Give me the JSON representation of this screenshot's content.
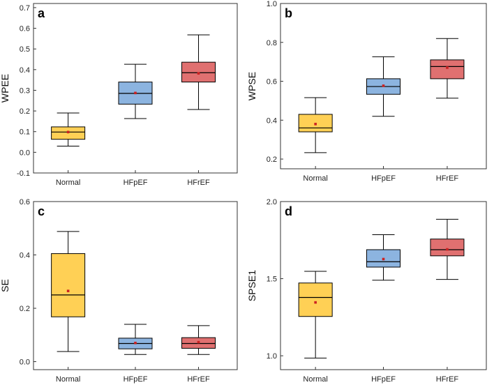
{
  "chart_data": [
    {
      "type": "box",
      "panel_label": "a",
      "ylabel": "WPEE",
      "xlabel": "",
      "ylim": [
        -0.1,
        0.72
      ],
      "yticks": [
        -0.1,
        0.0,
        0.1,
        0.2,
        0.3,
        0.4,
        0.5,
        0.6,
        0.7
      ],
      "ytick_labels": [
        "-0.1",
        "0.0",
        "0.1",
        "0.2",
        "0.3",
        "0.4",
        "0.5",
        "0.6",
        "0.7"
      ],
      "categories": [
        "Normal",
        "HFpEF",
        "HFrEF"
      ],
      "boxes": [
        {
          "name": "Normal",
          "whisker_low": 0.03,
          "q1": 0.063,
          "median": 0.098,
          "q3": 0.123,
          "whisker_high": 0.19,
          "mean": 0.098,
          "color": "#FFD055"
        },
        {
          "name": "HFpEF",
          "whisker_low": 0.163,
          "q1": 0.233,
          "median": 0.285,
          "q3": 0.34,
          "whisker_high": 0.426,
          "mean": 0.287,
          "color": "#8CB4E0"
        },
        {
          "name": "HFrEF",
          "whisker_low": 0.207,
          "q1": 0.34,
          "median": 0.385,
          "q3": 0.436,
          "whisker_high": 0.568,
          "mean": 0.382,
          "color": "#E07070"
        }
      ]
    },
    {
      "type": "box",
      "panel_label": "b",
      "ylabel": "WPSE",
      "xlabel": "",
      "ylim": [
        0.15,
        1.0
      ],
      "yticks": [
        0.2,
        0.4,
        0.6,
        0.8,
        1.0
      ],
      "ytick_labels": [
        "0.2",
        "0.4",
        "0.6",
        "0.8",
        "1.0"
      ],
      "categories": [
        "Normal",
        "HFpEF",
        "HFrEF"
      ],
      "boxes": [
        {
          "name": "Normal",
          "whisker_low": 0.233,
          "q1": 0.34,
          "median": 0.36,
          "q3": 0.43,
          "whisker_high": 0.516,
          "mean": 0.38,
          "color": "#FFD055"
        },
        {
          "name": "HFpEF",
          "whisker_low": 0.42,
          "q1": 0.533,
          "median": 0.573,
          "q3": 0.613,
          "whisker_high": 0.726,
          "mean": 0.577,
          "color": "#8CB4E0"
        },
        {
          "name": "HFrEF",
          "whisker_low": 0.513,
          "q1": 0.613,
          "median": 0.676,
          "q3": 0.71,
          "whisker_high": 0.82,
          "mean": 0.67,
          "color": "#E07070"
        }
      ]
    },
    {
      "type": "box",
      "panel_label": "c",
      "ylabel": "SE",
      "xlabel": "",
      "ylim": [
        -0.03,
        0.6
      ],
      "yticks": [
        0.0,
        0.2,
        0.4,
        0.6
      ],
      "ytick_labels": [
        "0.0",
        "0.2",
        "0.4",
        "0.6"
      ],
      "categories": [
        "Normal",
        "HFpEF",
        "HFrEF"
      ],
      "boxes": [
        {
          "name": "Normal",
          "whisker_low": 0.038,
          "q1": 0.168,
          "median": 0.25,
          "q3": 0.405,
          "whisker_high": 0.488,
          "mean": 0.265,
          "color": "#FFD055"
        },
        {
          "name": "HFpEF",
          "whisker_low": 0.027,
          "q1": 0.048,
          "median": 0.068,
          "q3": 0.088,
          "whisker_high": 0.14,
          "mean": 0.07,
          "color": "#8CB4E0"
        },
        {
          "name": "HFrEF",
          "whisker_low": 0.027,
          "q1": 0.05,
          "median": 0.068,
          "q3": 0.09,
          "whisker_high": 0.135,
          "mean": 0.073,
          "color": "#E07070"
        }
      ]
    },
    {
      "type": "box",
      "panel_label": "d",
      "ylabel": "SPSE1",
      "xlabel": "",
      "ylim": [
        0.91,
        2.0
      ],
      "yticks": [
        1.0,
        1.5,
        2.0
      ],
      "ytick_labels": [
        "1.0",
        "1.5",
        "2.0"
      ],
      "categories": [
        "Normal",
        "HFpEF",
        "HFrEF"
      ],
      "boxes": [
        {
          "name": "Normal",
          "whisker_low": 0.985,
          "q1": 1.255,
          "median": 1.378,
          "q3": 1.472,
          "whisker_high": 1.548,
          "mean": 1.346,
          "color": "#FFD055"
        },
        {
          "name": "HFpEF",
          "whisker_low": 1.49,
          "q1": 1.575,
          "median": 1.61,
          "q3": 1.688,
          "whisker_high": 1.785,
          "mean": 1.627,
          "color": "#8CB4E0"
        },
        {
          "name": "HFrEF",
          "whisker_low": 1.495,
          "q1": 1.648,
          "median": 1.688,
          "q3": 1.757,
          "whisker_high": 1.885,
          "mean": 1.69,
          "color": "#E07070"
        }
      ]
    }
  ],
  "colors": {
    "mean_marker": "#CC2222",
    "frame": "#333333"
  }
}
